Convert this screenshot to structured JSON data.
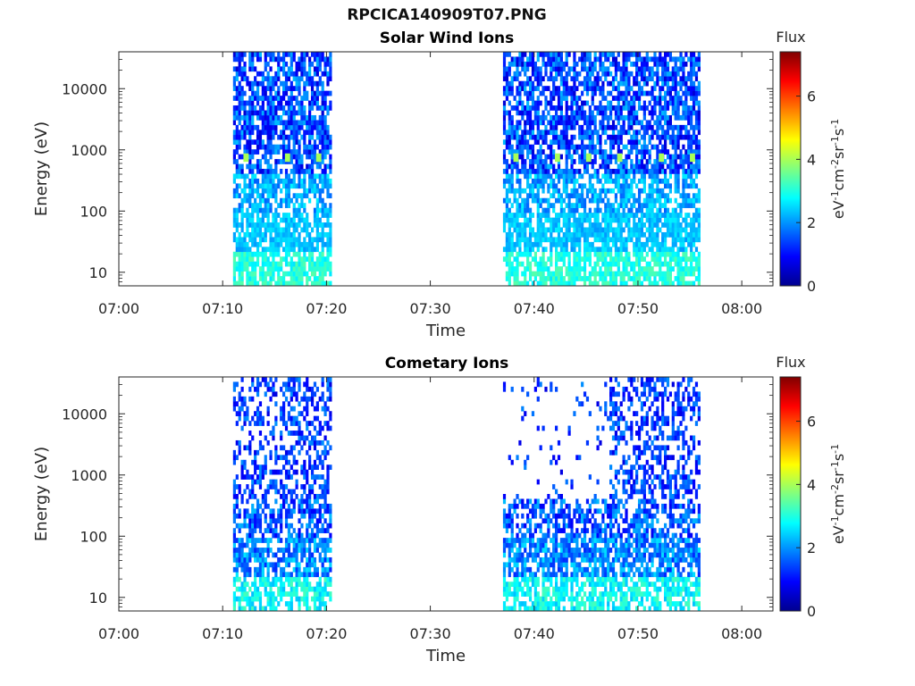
{
  "figure": {
    "title": "RPCICA140909T07.PNG"
  },
  "chart_data": [
    {
      "type": "heatmap",
      "title": "Solar Wind Ions",
      "xlabel": "Time",
      "ylabel": "Energy (eV)",
      "x_ticks": [
        "07:00",
        "07:10",
        "07:20",
        "07:30",
        "07:40",
        "07:50",
        "08:00"
      ],
      "xlim": [
        "07:00",
        "08:03"
      ],
      "y_scale": "log",
      "y_ticks": [
        "10",
        "100",
        "1000",
        "10000"
      ],
      "ylim": [
        6,
        40000
      ],
      "colorbar": {
        "label": "Flux",
        "unit_label": "eV-1cm-2sr-1s-1",
        "ticks": [
          "0",
          "2",
          "4",
          "6"
        ],
        "range": [
          0,
          7.4
        ],
        "colormap": "jet"
      },
      "data_intervals": [
        [
          "07:11",
          "07:20:30"
        ],
        [
          "07:37",
          "07:56"
        ]
      ],
      "energy_peaks": [
        {
          "time": "07:12",
          "energy": 700,
          "flux": 4.0
        },
        {
          "time": "07:16",
          "energy": 700,
          "flux": 4.0
        },
        {
          "time": "07:19",
          "energy": 700,
          "flux": 4.0
        },
        {
          "time": "07:38",
          "energy": 700,
          "flux": 4.0
        },
        {
          "time": "07:42",
          "energy": 700,
          "flux": 4.0
        },
        {
          "time": "07:45",
          "energy": 700,
          "flux": 4.0
        },
        {
          "time": "07:48",
          "energy": 700,
          "flux": 4.0
        },
        {
          "time": "07:52",
          "energy": 700,
          "flux": 4.0
        },
        {
          "time": "07:55",
          "energy": 700,
          "flux": 4.0
        }
      ]
    },
    {
      "type": "heatmap",
      "title": "Cometary Ions",
      "xlabel": "Time",
      "ylabel": "Energy (eV)",
      "x_ticks": [
        "07:00",
        "07:10",
        "07:20",
        "07:30",
        "07:40",
        "07:50",
        "08:00"
      ],
      "xlim": [
        "07:00",
        "08:03"
      ],
      "y_scale": "log",
      "y_ticks": [
        "10",
        "100",
        "1000",
        "10000"
      ],
      "ylim": [
        6,
        40000
      ],
      "colorbar": {
        "label": "Flux",
        "unit_label": "eV-1cm-2sr-1s-1",
        "ticks": [
          "0",
          "2",
          "4",
          "6"
        ],
        "range": [
          0,
          7.4
        ],
        "colormap": "jet"
      },
      "data_intervals": [
        [
          "07:11",
          "07:20:30"
        ],
        [
          "07:37",
          "07:56"
        ]
      ],
      "energy_peaks": []
    }
  ]
}
